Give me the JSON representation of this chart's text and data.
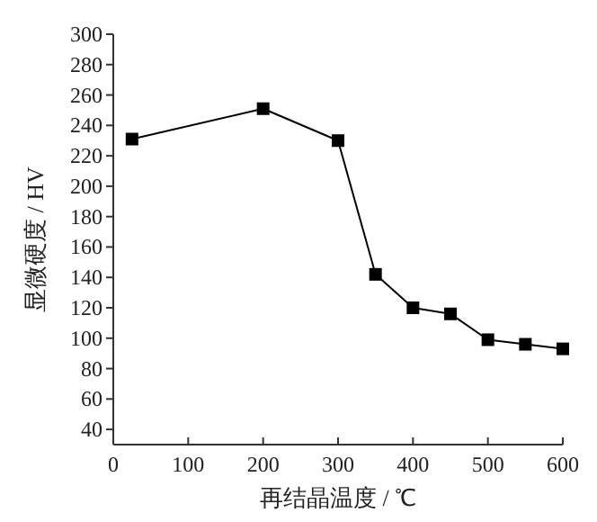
{
  "chart_data": {
    "type": "line",
    "xlabel": "再结晶温度 / ℃",
    "ylabel": "显微硬度 / HV",
    "x": [
      25,
      200,
      300,
      350,
      400,
      450,
      500,
      550,
      600
    ],
    "series": [
      {
        "color": "#000000",
        "values": [
          231,
          251,
          230,
          142,
          120,
          116,
          99,
          96,
          93
        ]
      }
    ],
    "xlim": [
      0,
      600
    ],
    "xticks": [
      0,
      100,
      200,
      300,
      400,
      500,
      600
    ],
    "ylim": [
      30,
      300
    ],
    "yticks": [
      40,
      60,
      80,
      100,
      120,
      140,
      160,
      180,
      200,
      220,
      240,
      260,
      280,
      300
    ],
    "marker": "square",
    "line_style": "solid",
    "grid": false
  }
}
